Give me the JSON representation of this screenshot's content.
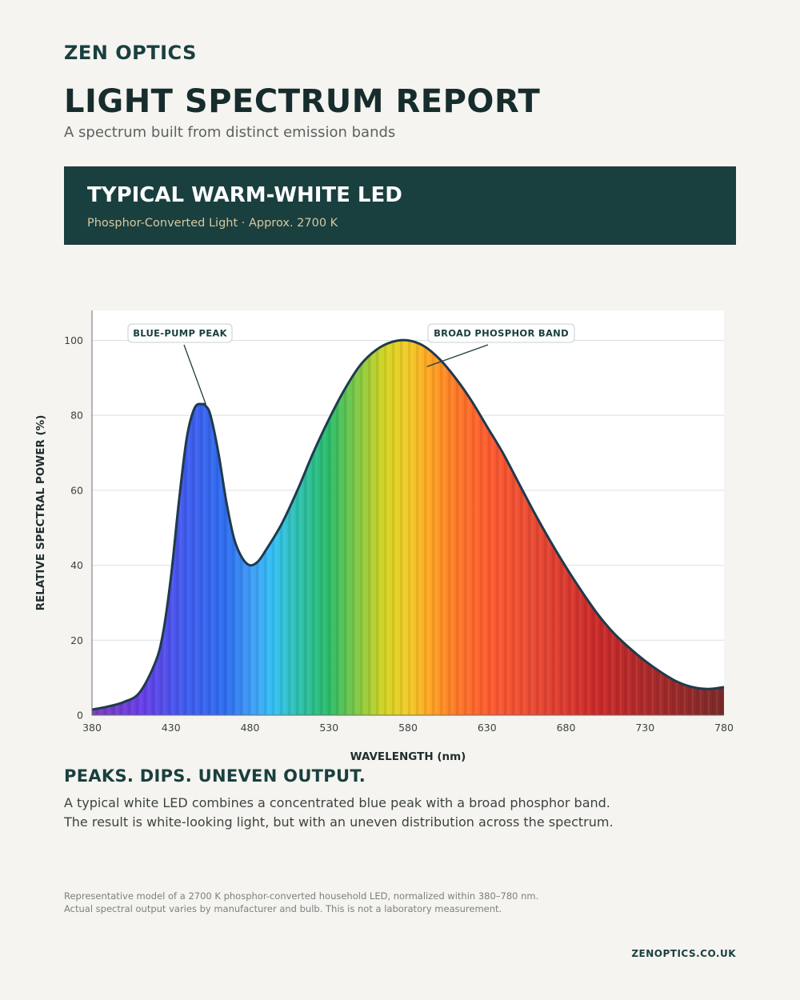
{
  "header": {
    "brand": "ZEN OPTICS",
    "title": "LIGHT SPECTRUM REPORT",
    "subtitle": "A spectrum built from distinct emission bands"
  },
  "banner": {
    "title": "TYPICAL WARM-WHITE LED",
    "subtitle": "Phosphor-Converted Light · Approx. 2700 K"
  },
  "chart_data": {
    "type": "area",
    "title": "",
    "xlabel": "WAVELENGTH (nm)",
    "ylabel": "RELATIVE SPECTRAL POWER (%)",
    "xlim": [
      380,
      780
    ],
    "ylim": [
      0,
      108
    ],
    "xticks": [
      380,
      430,
      480,
      530,
      580,
      630,
      680,
      730,
      780
    ],
    "yticks": [
      0,
      20,
      40,
      60,
      80,
      100
    ],
    "grid": "horizontal",
    "fill": "visible-spectrum gradient",
    "line_color": "#1f3a4d",
    "series": [
      {
        "x": [
          380,
          390,
          400,
          410,
          420,
          425,
          430,
          435,
          440,
          445,
          450,
          452,
          455,
          460,
          465,
          470,
          475,
          480,
          485,
          490,
          500,
          510,
          520,
          530,
          540,
          550,
          560,
          570,
          580,
          590,
          600,
          610,
          620,
          630,
          640,
          650,
          660,
          670,
          680,
          690,
          700,
          710,
          720,
          730,
          740,
          750,
          760,
          770,
          780
        ],
        "y": [
          1.5,
          2.3,
          3.5,
          6,
          14,
          22,
          37,
          57,
          74,
          82,
          83,
          82.5,
          80,
          70,
          57,
          47,
          42,
          40,
          41,
          44,
          51,
          60,
          70,
          79,
          87,
          93.5,
          97.5,
          99.6,
          100,
          98.5,
          95,
          90,
          84,
          77,
          70,
          62,
          54,
          46.5,
          39.5,
          33,
          27,
          22,
          18,
          14.5,
          11.5,
          9,
          7.5,
          7,
          7.5
        ]
      }
    ],
    "annotations": [
      {
        "text": "BLUE-PUMP PEAK",
        "x": 452,
        "y": 83
      },
      {
        "text": "BROAD PHOSPHOR BAND",
        "x": 592,
        "y": 93
      }
    ]
  },
  "section": {
    "heading": "PEAKS. DIPS. UNEVEN OUTPUT.",
    "body_line1": "A typical white LED combines a concentrated blue peak with a broad phosphor band.",
    "body_line2": "The result is white-looking light, but with an uneven distribution across the spectrum."
  },
  "footer": {
    "note_line1": "Representative model of a 2700 K phosphor-converted household LED, normalized within 380–780 nm.",
    "note_line2": "Actual spectral output varies by manufacturer and bulb. This is not a laboratory measurement.",
    "site": "ZENOPTICS.CO.UK"
  }
}
